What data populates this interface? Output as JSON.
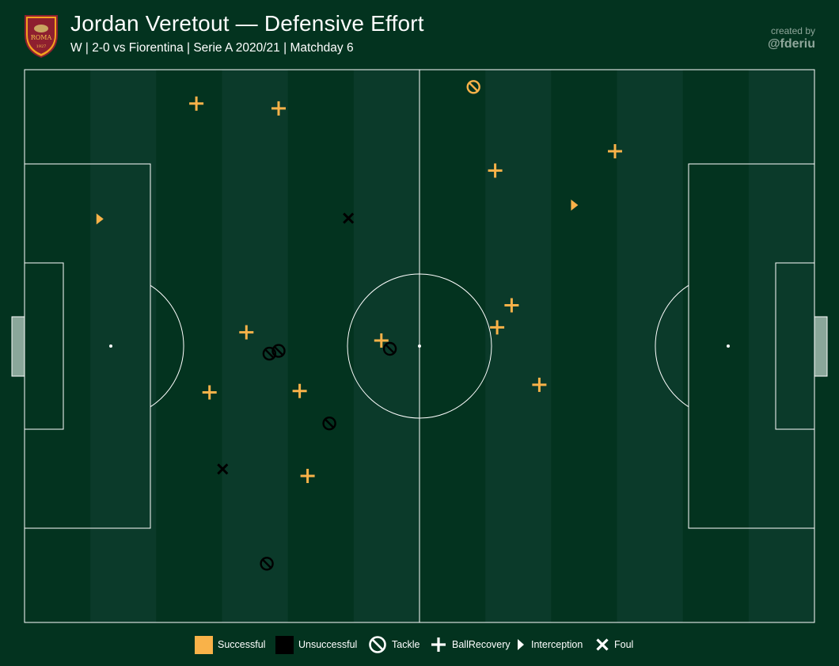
{
  "header": {
    "title": "Jordan Veretout — Defensive Effort",
    "subtitle": "W | 2-0 vs Fiorentina | Serie A 2020/21 | Matchday 6",
    "credit_line1": "created by",
    "credit_line2": "@fderiu",
    "logo": {
      "icon": "as-roma-crest-icon",
      "text": "ROMA",
      "year": "1927"
    }
  },
  "colors": {
    "background": "#03331f",
    "stripe_dark": "#03331f",
    "stripe_light": "#0b3a2a",
    "lines": "#ffffff",
    "successful": "#f9b249",
    "unsuccessful": "#000000"
  },
  "legend": {
    "items": [
      {
        "label": "Successful",
        "icon": "square-swatch-orange"
      },
      {
        "label": "Unsuccessful",
        "icon": "square-swatch-black"
      },
      {
        "label": "Tackle",
        "icon": "tackle-icon"
      },
      {
        "label": "BallRecovery",
        "icon": "ball-recovery-icon"
      },
      {
        "label": "Interception",
        "icon": "interception-icon"
      },
      {
        "label": "Foul",
        "icon": "foul-icon"
      }
    ]
  },
  "chart_data": {
    "type": "scatter",
    "pitch": {
      "length": 120,
      "width": 80,
      "orientation": "horizontal"
    },
    "points": [
      {
        "x": 26.1,
        "y": 75.1,
        "event": "BallRecovery",
        "outcome": "Successful"
      },
      {
        "x": 38.6,
        "y": 74.4,
        "event": "BallRecovery",
        "outcome": "Successful"
      },
      {
        "x": 68.2,
        "y": 77.5,
        "event": "Tackle",
        "outcome": "Successful"
      },
      {
        "x": 71.5,
        "y": 65.4,
        "event": "BallRecovery",
        "outcome": "Successful"
      },
      {
        "x": 89.7,
        "y": 68.2,
        "event": "BallRecovery",
        "outcome": "Successful"
      },
      {
        "x": 83.5,
        "y": 60.4,
        "event": "Interception",
        "outcome": "Successful"
      },
      {
        "x": 11.4,
        "y": 58.4,
        "event": "Interception",
        "outcome": "Successful"
      },
      {
        "x": 49.2,
        "y": 58.5,
        "event": "Foul",
        "outcome": "Unsuccessful"
      },
      {
        "x": 33.7,
        "y": 42.0,
        "event": "BallRecovery",
        "outcome": "Successful"
      },
      {
        "x": 37.2,
        "y": 38.9,
        "event": "Tackle",
        "outcome": "Unsuccessful"
      },
      {
        "x": 38.6,
        "y": 39.3,
        "event": "Tackle",
        "outcome": "Unsuccessful"
      },
      {
        "x": 54.2,
        "y": 40.8,
        "event": "BallRecovery",
        "outcome": "Successful"
      },
      {
        "x": 55.5,
        "y": 39.6,
        "event": "Tackle",
        "outcome": "Unsuccessful"
      },
      {
        "x": 74.0,
        "y": 45.9,
        "event": "BallRecovery",
        "outcome": "Successful"
      },
      {
        "x": 71.8,
        "y": 42.7,
        "event": "BallRecovery",
        "outcome": "Successful"
      },
      {
        "x": 28.1,
        "y": 33.3,
        "event": "BallRecovery",
        "outcome": "Successful"
      },
      {
        "x": 41.8,
        "y": 33.5,
        "event": "BallRecovery",
        "outcome": "Successful"
      },
      {
        "x": 78.2,
        "y": 34.4,
        "event": "BallRecovery",
        "outcome": "Successful"
      },
      {
        "x": 46.3,
        "y": 28.8,
        "event": "Tackle",
        "outcome": "Unsuccessful"
      },
      {
        "x": 30.1,
        "y": 22.2,
        "event": "Foul",
        "outcome": "Unsuccessful"
      },
      {
        "x": 43.0,
        "y": 21.2,
        "event": "BallRecovery",
        "outcome": "Successful"
      },
      {
        "x": 36.8,
        "y": 8.5,
        "event": "Tackle",
        "outcome": "Unsuccessful"
      }
    ]
  }
}
